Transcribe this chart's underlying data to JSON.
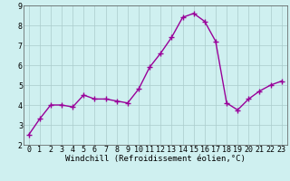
{
  "x": [
    0,
    1,
    2,
    3,
    4,
    5,
    6,
    7,
    8,
    9,
    10,
    11,
    12,
    13,
    14,
    15,
    16,
    17,
    18,
    19,
    20,
    21,
    22,
    23
  ],
  "y": [
    2.5,
    3.3,
    4.0,
    4.0,
    3.9,
    4.5,
    4.3,
    4.3,
    4.2,
    4.1,
    4.8,
    5.9,
    6.6,
    7.4,
    8.4,
    8.6,
    8.2,
    7.2,
    4.1,
    3.75,
    4.3,
    4.7,
    5.0,
    5.2
  ],
  "line_color": "#990099",
  "marker": "+",
  "marker_size": 4,
  "linewidth": 1.0,
  "background_color": "#cff0f0",
  "grid_color": "#aacccc",
  "xlabel": "Windchill (Refroidissement éolien,°C)",
  "xlim": [
    -0.5,
    23.5
  ],
  "ylim": [
    2,
    9
  ],
  "yticks": [
    2,
    3,
    4,
    5,
    6,
    7,
    8,
    9
  ],
  "xticks": [
    0,
    1,
    2,
    3,
    4,
    5,
    6,
    7,
    8,
    9,
    10,
    11,
    12,
    13,
    14,
    15,
    16,
    17,
    18,
    19,
    20,
    21,
    22,
    23
  ],
  "xlabel_fontsize": 6.5,
  "tick_fontsize": 6.0,
  "spine_color": "#555555"
}
